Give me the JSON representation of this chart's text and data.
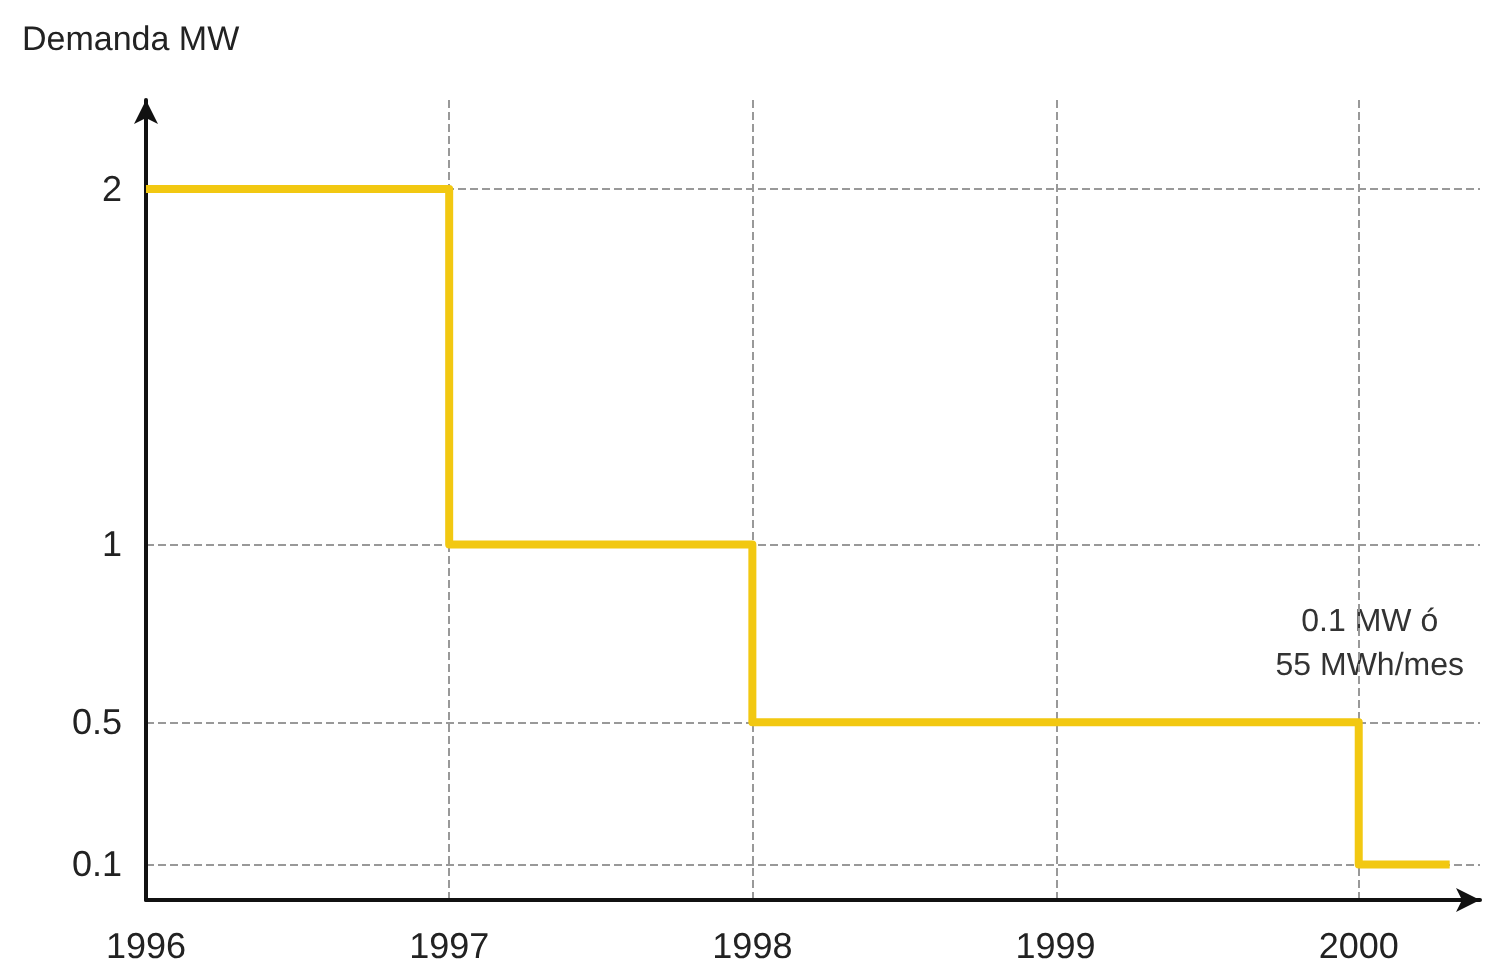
{
  "chart_data": {
    "type": "step",
    "ylabel": "Demanda MW",
    "x": [
      1996,
      1997,
      1998,
      2000,
      2000.3
    ],
    "series": [
      {
        "color": "#f2c811",
        "values": [
          2,
          1,
          0.5,
          0.1,
          0.1
        ]
      }
    ],
    "xlim": [
      1996,
      2000.4
    ],
    "xticks": [
      1996,
      1997,
      1998,
      1999,
      2000
    ],
    "ylim": [
      0,
      2.25
    ],
    "yticks": [
      0.1,
      0.5,
      1,
      2
    ],
    "grid": true,
    "marker": "none",
    "line_style": "solid",
    "annotations": [
      "0.1 MW ó\n55 MWh/mes"
    ]
  }
}
